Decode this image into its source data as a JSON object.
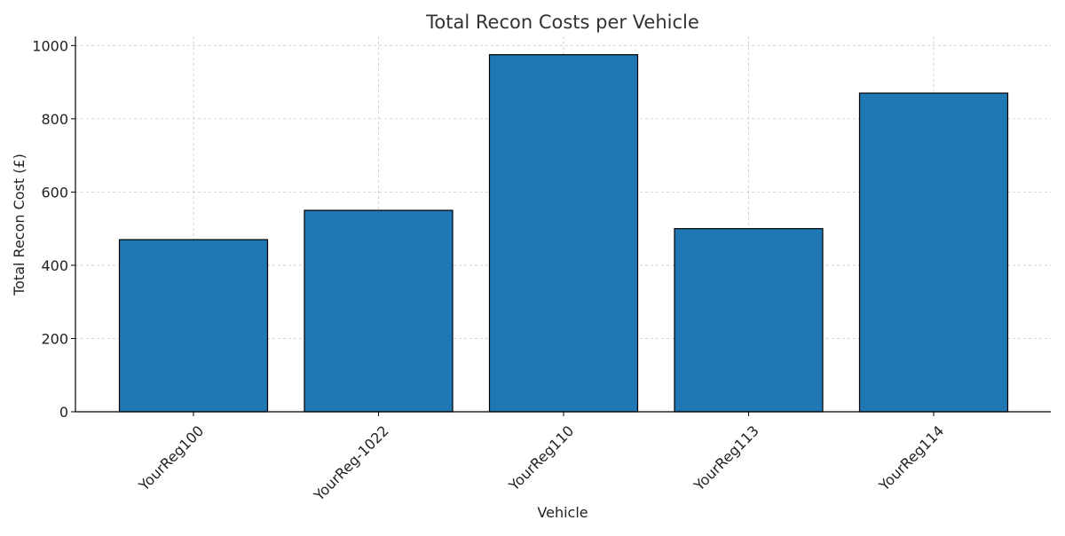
{
  "chart_data": {
    "type": "bar",
    "title": "Total Recon Costs per Vehicle",
    "xlabel": "Vehicle",
    "ylabel": "Total Recon Cost (£)",
    "categories": [
      "YourReg100",
      "YourReg-1022",
      "YourReg110",
      "YourReg113",
      "YourReg114"
    ],
    "values": [
      470,
      550,
      975,
      500,
      870
    ],
    "ylim": [
      0,
      1025
    ],
    "yticks": [
      0,
      200,
      400,
      600,
      800,
      1000
    ],
    "grid": true,
    "bar_color": "#1f77b4",
    "bar_edge_color": "#000000"
  }
}
